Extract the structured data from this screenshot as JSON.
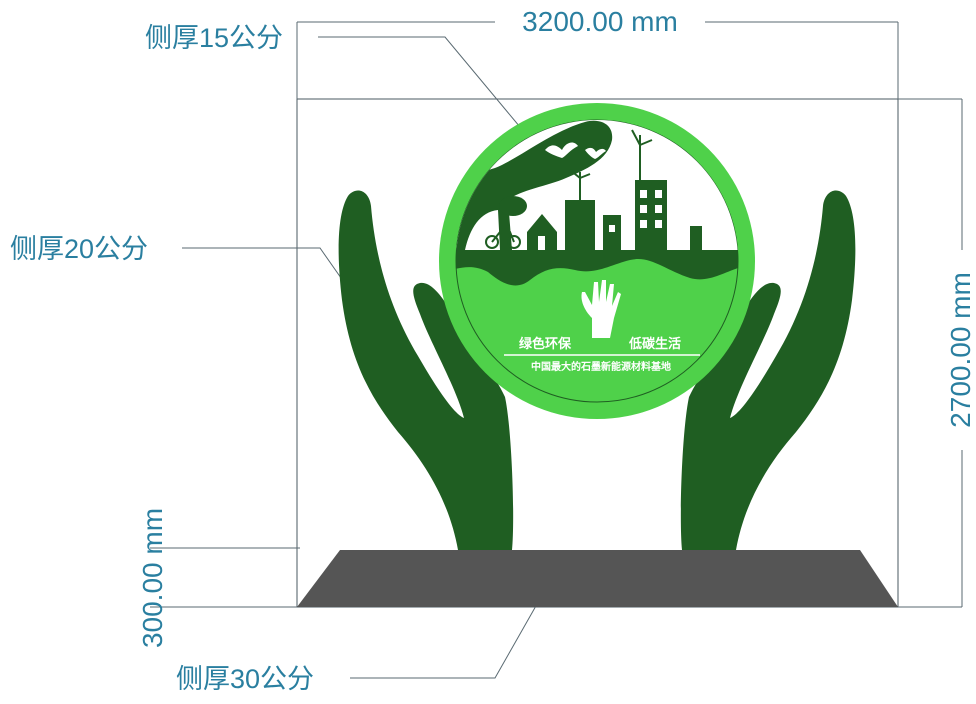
{
  "colors": {
    "dimension": "#2a7fa0",
    "leader": "#5a6a72",
    "frame": "#4a5a62",
    "dark_green": "#1f5e22",
    "light_green": "#4fd14a",
    "base": "#555555",
    "white": "#ffffff"
  },
  "dimensions": {
    "width": "3200.00 mm",
    "height": "2700.00 mm",
    "base_height": "300.00 mm"
  },
  "callouts": {
    "top": "侧厚15公分",
    "middle": "侧厚20公分",
    "bottom": "侧厚30公分"
  },
  "sign": {
    "slogan_left": "绿色环保",
    "slogan_right": "低碳生活",
    "subtitle": "中国最大的石墨新能源材料基地"
  },
  "icons": [
    "hand-icon",
    "bird-icon",
    "wind-turbine-icon",
    "bicycle-icon",
    "tree-icon",
    "house-icon",
    "building-icon"
  ]
}
